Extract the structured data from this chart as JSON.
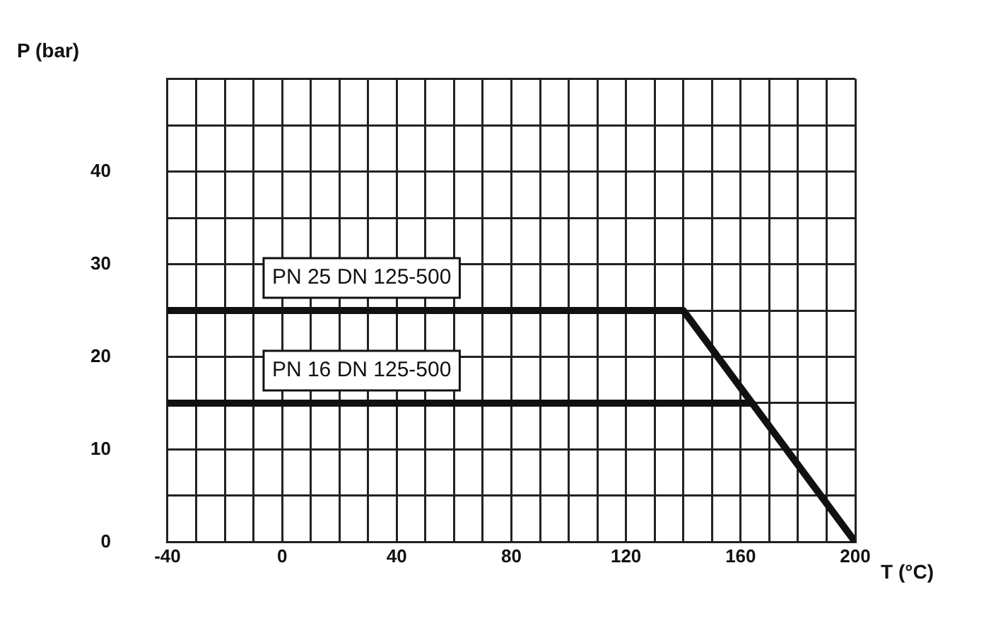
{
  "chart_data": {
    "type": "line",
    "xlabel": "T (°C)",
    "ylabel": "P (bar)",
    "series": [
      {
        "name": "PN 25 DN 125-500",
        "color": "#111111",
        "x": [
          -40,
          140,
          200
        ],
        "values": [
          25,
          25,
          0
        ]
      },
      {
        "name": "PN 16 DN 125-500",
        "color": "#111111",
        "x": [
          -40,
          164
        ],
        "values": [
          15,
          15
        ]
      }
    ],
    "xlim": [
      -40,
      200
    ],
    "xticks": [
      -40,
      {
        "value": -30,
        "label": null
      },
      {
        "value": -20,
        "label": null
      },
      {
        "value": -10,
        "label": null
      },
      0,
      {
        "value": 10,
        "label": null
      },
      {
        "value": 20,
        "label": null
      },
      {
        "value": 30,
        "label": null
      },
      40,
      {
        "value": 50,
        "label": null
      },
      {
        "value": 60,
        "label": null
      },
      {
        "value": 70,
        "label": null
      },
      80,
      {
        "value": 90,
        "label": null
      },
      {
        "value": 100,
        "label": null
      },
      {
        "value": 110,
        "label": null
      },
      120,
      {
        "value": 130,
        "label": null
      },
      {
        "value": 140,
        "label": null
      },
      {
        "value": 150,
        "label": null
      },
      160,
      {
        "value": 170,
        "label": null
      },
      {
        "value": 180,
        "label": null
      },
      {
        "value": 190,
        "label": null
      },
      200
    ],
    "ylim": [
      0,
      50
    ],
    "yticks": [
      0,
      {
        "value": 5,
        "label": null
      },
      10,
      {
        "value": 15,
        "label": null
      },
      20,
      {
        "value": 25,
        "label": null
      },
      30,
      {
        "value": 35,
        "label": null
      },
      40,
      {
        "value": 45,
        "label": null
      },
      {
        "value": 50,
        "label": null
      }
    ],
    "grid": true,
    "legend": false,
    "marker": "none",
    "line_style": "solid"
  }
}
